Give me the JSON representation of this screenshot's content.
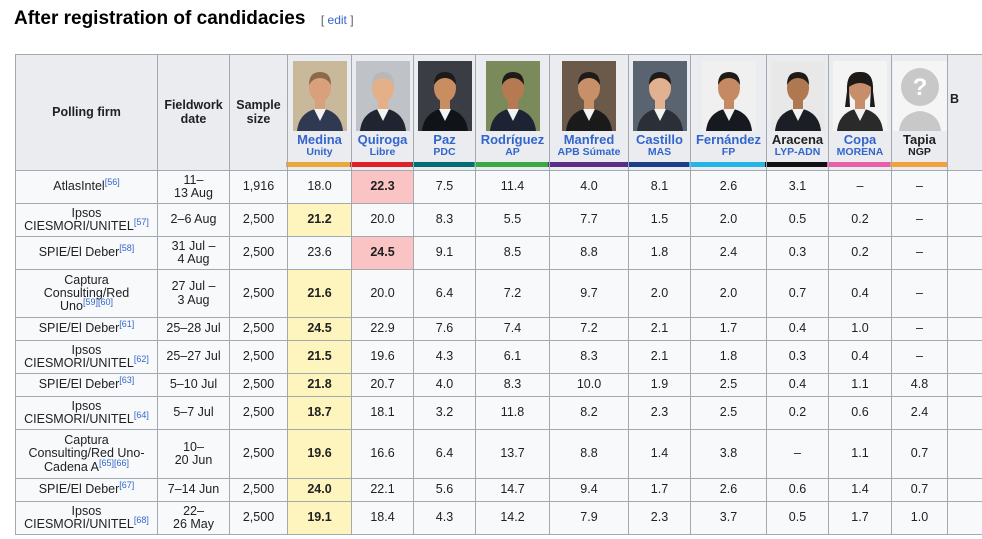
{
  "heading": {
    "title": "After registration of candidacies",
    "edit_open": "[",
    "edit_label": "edit",
    "edit_close": "]"
  },
  "table": {
    "col_polling_firm": "Polling firm",
    "col_fieldwork": "Fieldwork date",
    "col_sample": "Sample size",
    "candidates": [
      {
        "name": "Medina",
        "party": "Unity",
        "color": "#e8a93a",
        "photo": "photo-medina"
      },
      {
        "name": "Quiroga",
        "party": "Libre",
        "color": "#e01f26",
        "photo": "photo-quiroga"
      },
      {
        "name": "Paz",
        "party": "PDC",
        "color": "#006f73",
        "photo": "photo-paz"
      },
      {
        "name": "Rodríguez",
        "party": "AP",
        "color": "#39a845",
        "photo": "photo-rodriguez"
      },
      {
        "name": "Manfred",
        "party": "APB Súmate",
        "color": "#5a2d86",
        "photo": "photo-manfred"
      },
      {
        "name": "Castillo",
        "party": "MAS",
        "color": "#1b3e8c",
        "photo": "photo-castillo"
      },
      {
        "name": "Fernández",
        "party": "FP",
        "color": "#24b4e8",
        "photo": "photo-fernandez"
      },
      {
        "name": "Aracena",
        "party": "LYP-ADN",
        "color": "#111111",
        "photo": "photo-aracena"
      },
      {
        "name": "Copa",
        "party": "MORENA",
        "color": "#e85fa7",
        "photo": "photo-copa"
      },
      {
        "name": "Tapia",
        "party": "NGP",
        "color": "#f2a23a",
        "photo": "photo-placeholder"
      }
    ],
    "extra_col_head": "B",
    "rows": [
      {
        "firm": "AtlasIntel",
        "ref": "[56]",
        "date": "11–\n13 Aug",
        "sample": "1,916",
        "values": [
          "18.0",
          "22.3",
          "7.5",
          "11.4",
          "4.0",
          "8.1",
          "2.6",
          "3.1",
          "–",
          "–"
        ],
        "lead": 1,
        "hl": "pink"
      },
      {
        "firm": "Ipsos\nCIESMORI/UNITEL",
        "ref": "[57]",
        "date": "2–6 Aug",
        "sample": "2,500",
        "values": [
          "21.2",
          "20.0",
          "8.3",
          "5.5",
          "7.7",
          "1.5",
          "2.0",
          "0.5",
          "0.2",
          "–"
        ],
        "lead": 0,
        "hl": "yellow"
      },
      {
        "firm": "SPIE/El Deber",
        "ref": "[58]",
        "date": "31 Jul –\n4 Aug",
        "sample": "2,500",
        "values": [
          "23.6",
          "24.5",
          "9.1",
          "8.5",
          "8.8",
          "1.8",
          "2.4",
          "0.3",
          "0.2",
          "–"
        ],
        "lead": 1,
        "hl": "pink"
      },
      {
        "firm": "Captura\nConsulting/Red\nUno",
        "ref": "[59][60]",
        "date": "27 Jul –\n3 Aug",
        "sample": "2,500",
        "values": [
          "21.6",
          "20.0",
          "6.4",
          "7.2",
          "9.7",
          "2.0",
          "2.0",
          "0.7",
          "0.4",
          "–"
        ],
        "lead": 0,
        "hl": "yellow"
      },
      {
        "firm": "SPIE/El Deber",
        "ref": "[61]",
        "date": "25–28 Jul",
        "sample": "2,500",
        "values": [
          "24.5",
          "22.9",
          "7.6",
          "7.4",
          "7.2",
          "2.1",
          "1.7",
          "0.4",
          "1.0",
          "–"
        ],
        "lead": 0,
        "hl": "yellow"
      },
      {
        "firm": "Ipsos\nCIESMORI/UNITEL",
        "ref": "[62]",
        "date": "25–27 Jul",
        "sample": "2,500",
        "values": [
          "21.5",
          "19.6",
          "4.3",
          "6.1",
          "8.3",
          "2.1",
          "1.8",
          "0.3",
          "0.4",
          "–"
        ],
        "lead": 0,
        "hl": "yellow"
      },
      {
        "firm": "SPIE/El Deber",
        "ref": "[63]",
        "date": "5–10 Jul",
        "sample": "2,500",
        "values": [
          "21.8",
          "20.7",
          "4.0",
          "8.3",
          "10.0",
          "1.9",
          "2.5",
          "0.4",
          "1.1",
          "4.8"
        ],
        "lead": 0,
        "hl": "yellow"
      },
      {
        "firm": "Ipsos\nCIESMORI/UNITEL",
        "ref": "[64]",
        "date": "5–7 Jul",
        "sample": "2,500",
        "values": [
          "18.7",
          "18.1",
          "3.2",
          "11.8",
          "8.2",
          "2.3",
          "2.5",
          "0.2",
          "0.6",
          "2.4"
        ],
        "lead": 0,
        "hl": "yellow"
      },
      {
        "firm": "Captura\nConsulting/Red Uno-\nCadena A",
        "ref": "[65][66]",
        "date": "10–\n20 Jun",
        "sample": "2,500",
        "values": [
          "19.6",
          "16.6",
          "6.4",
          "13.7",
          "8.8",
          "1.4",
          "3.8",
          "–",
          "1.1",
          "0.7"
        ],
        "lead": 0,
        "hl": "yellow"
      },
      {
        "firm": "SPIE/El Deber",
        "ref": "[67]",
        "date": "7–14 Jun",
        "sample": "2,500",
        "values": [
          "24.0",
          "22.1",
          "5.6",
          "14.7",
          "9.4",
          "1.7",
          "2.6",
          "0.6",
          "1.4",
          "0.7"
        ],
        "lead": 0,
        "hl": "yellow"
      },
      {
        "firm": "Ipsos\nCIESMORI/UNITEL",
        "ref": "[68]",
        "date": "22–\n26 May",
        "sample": "2,500",
        "values": [
          "19.1",
          "18.4",
          "4.3",
          "14.2",
          "7.9",
          "2.3",
          "3.7",
          "0.5",
          "1.7",
          "1.0"
        ],
        "lead": 0,
        "hl": "yellow"
      }
    ]
  }
}
